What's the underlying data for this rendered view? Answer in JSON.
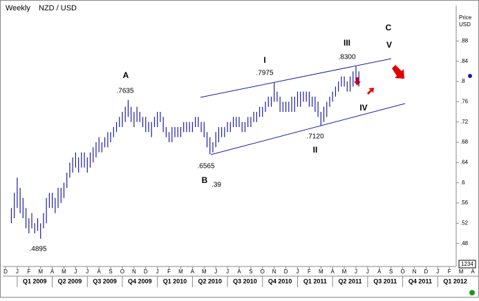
{
  "chart_data": {
    "type": "ohlc",
    "title": "Weekly",
    "symbol": "NZD / USD",
    "y_axis_label": "Price",
    "y_axis_unit": "USD",
    "color": "#1a1aa6",
    "ylim": [
      0.436,
      0.95
    ],
    "yticks": [
      {
        "value": 0.48,
        "label": ".48"
      },
      {
        "value": 0.52,
        "label": ".52"
      },
      {
        "value": 0.56,
        "label": ".56"
      },
      {
        "value": 0.6,
        "label": ".6"
      },
      {
        "value": 0.64,
        "label": ".64"
      },
      {
        "value": 0.68,
        "label": ".68"
      },
      {
        "value": 0.72,
        "label": ".72"
      },
      {
        "value": 0.76,
        "label": ".76"
      },
      {
        "value": 0.8,
        "label": ".8"
      },
      {
        "value": 0.84,
        "label": ".84"
      },
      {
        "value": 0.88,
        "label": ".88"
      }
    ],
    "months": [
      "D",
      "J",
      "F",
      "M",
      "A",
      "M",
      "J",
      "J",
      "A",
      "S",
      "O",
      "N",
      "D",
      "J",
      "F",
      "M",
      "A",
      "M",
      "J",
      "J",
      "A",
      "S",
      "O",
      "N",
      "D",
      "J",
      "F",
      "M",
      "A",
      "M",
      "J",
      "J",
      "A",
      "S",
      "O",
      "N",
      "D",
      "J",
      "F",
      "M",
      "A"
    ],
    "quarters": [
      "Q1 2009",
      "Q2 2009",
      "Q3 2009",
      "Q4 2009",
      "Q1 2010",
      "Q2 2010",
      "Q3 2010",
      "Q4 2010",
      "Q1 2011",
      "Q2 2011",
      "Q3 2011",
      "Q4 2011",
      "Q1 2012"
    ],
    "high": [
      0.55,
      0.58,
      0.61,
      0.59,
      0.57,
      0.55,
      0.53,
      0.54,
      0.52,
      0.53,
      0.52,
      0.54,
      0.57,
      0.58,
      0.58,
      0.57,
      0.59,
      0.59,
      0.6,
      0.62,
      0.64,
      0.65,
      0.66,
      0.65,
      0.66,
      0.66,
      0.65,
      0.66,
      0.67,
      0.68,
      0.69,
      0.68,
      0.69,
      0.7,
      0.7,
      0.71,
      0.72,
      0.73,
      0.74,
      0.75,
      0.7635,
      0.75,
      0.74,
      0.75,
      0.74,
      0.73,
      0.73,
      0.72,
      0.72,
      0.73,
      0.74,
      0.74,
      0.73,
      0.71,
      0.7,
      0.71,
      0.71,
      0.71,
      0.71,
      0.72,
      0.72,
      0.72,
      0.72,
      0.73,
      0.73,
      0.72,
      0.72,
      0.7,
      0.69,
      0.68,
      0.7,
      0.71,
      0.71,
      0.71,
      0.72,
      0.72,
      0.73,
      0.73,
      0.73,
      0.72,
      0.72,
      0.73,
      0.73,
      0.74,
      0.74,
      0.75,
      0.75,
      0.76,
      0.77,
      0.77,
      0.7975,
      0.78,
      0.77,
      0.76,
      0.76,
      0.76,
      0.77,
      0.77,
      0.78,
      0.78,
      0.78,
      0.78,
      0.78,
      0.77,
      0.77,
      0.76,
      0.74,
      0.75,
      0.76,
      0.77,
      0.78,
      0.79,
      0.8,
      0.81,
      0.81,
      0.8,
      0.81,
      0.82,
      0.83,
      0.82
    ],
    "low": [
      0.52,
      0.53,
      0.55,
      0.54,
      0.53,
      0.51,
      0.5,
      0.51,
      0.5,
      0.505,
      0.4895,
      0.51,
      0.52,
      0.55,
      0.55,
      0.54,
      0.55,
      0.56,
      0.57,
      0.59,
      0.61,
      0.62,
      0.63,
      0.62,
      0.63,
      0.63,
      0.62,
      0.63,
      0.64,
      0.65,
      0.66,
      0.66,
      0.67,
      0.67,
      0.68,
      0.69,
      0.7,
      0.71,
      0.71,
      0.72,
      0.73,
      0.72,
      0.71,
      0.72,
      0.72,
      0.71,
      0.7,
      0.7,
      0.69,
      0.71,
      0.71,
      0.72,
      0.7,
      0.69,
      0.68,
      0.68,
      0.69,
      0.69,
      0.69,
      0.7,
      0.7,
      0.7,
      0.7,
      0.71,
      0.71,
      0.7,
      0.69,
      0.67,
      0.6565,
      0.66,
      0.67,
      0.68,
      0.69,
      0.69,
      0.7,
      0.7,
      0.71,
      0.71,
      0.71,
      0.7,
      0.7,
      0.71,
      0.71,
      0.72,
      0.72,
      0.73,
      0.73,
      0.74,
      0.75,
      0.75,
      0.76,
      0.76,
      0.74,
      0.74,
      0.74,
      0.74,
      0.74,
      0.74,
      0.75,
      0.75,
      0.76,
      0.76,
      0.75,
      0.75,
      0.74,
      0.73,
      0.712,
      0.72,
      0.73,
      0.75,
      0.76,
      0.77,
      0.78,
      0.79,
      0.79,
      0.78,
      0.78,
      0.79,
      0.8,
      0.79
    ],
    "annotations": [
      "A",
      ".7635",
      "B",
      ".6565",
      ".39",
      "I",
      ".7975",
      "II",
      ".7120",
      "III",
      ".8300",
      "IV",
      "V",
      "C",
      ".4895"
    ],
    "price_box": "1234"
  }
}
